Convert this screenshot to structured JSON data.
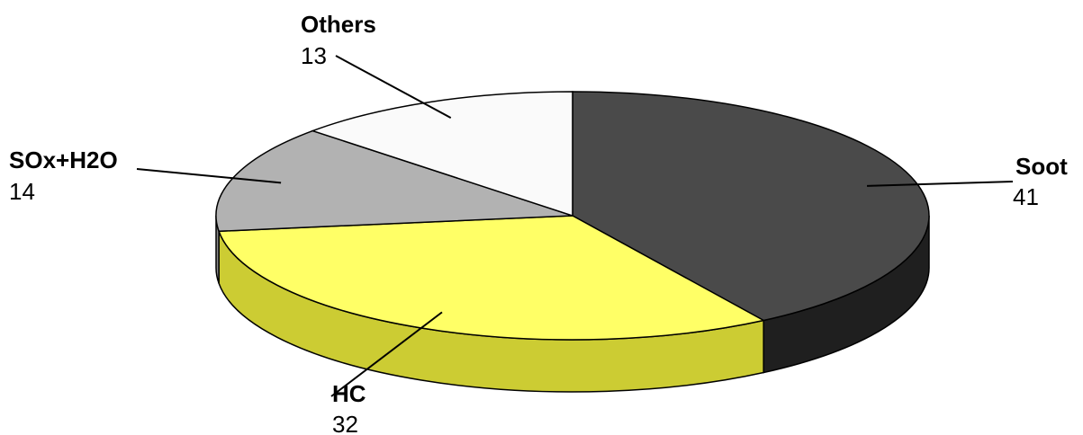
{
  "chart_data": {
    "type": "pie",
    "style": "3d",
    "slices": [
      {
        "label": "Soot",
        "value": 41,
        "color": "#4a4a4a",
        "side_color": "#1f1f1f"
      },
      {
        "label": "HC",
        "value": 32,
        "color": "#ffff66",
        "side_color": "#cccc33"
      },
      {
        "label": "SOx+H2O",
        "value": 14,
        "color": "#b2b2b2",
        "side_color": "#8a8a8a"
      },
      {
        "label": "Others",
        "value": 13,
        "color": "#fafafa",
        "side_color": "#d8d8d8"
      }
    ],
    "start_angle_deg": -90,
    "direction": "clockwise",
    "legend": "none",
    "data_labels": "outside-with-leader-lines"
  }
}
